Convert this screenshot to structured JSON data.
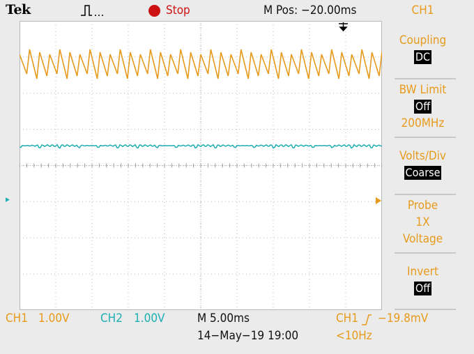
{
  "header": {
    "brand": "Tek",
    "run_state": "Stop",
    "horizontal_position": "M Pos: −20.00ms",
    "menu_title": "CH1"
  },
  "menu": {
    "coupling": {
      "label": "Coupling",
      "value": "DC"
    },
    "bw_limit": {
      "label": "BW Limit",
      "value": "Off",
      "sub": "200MHz"
    },
    "volts_div": {
      "label": "Volts/Div",
      "value": "Coarse"
    },
    "probe": {
      "label": "Probe",
      "value1": "1X",
      "value2": "Voltage"
    },
    "invert": {
      "label": "Invert",
      "value": "Off"
    }
  },
  "footer": {
    "ch1_label": "CH1",
    "ch1_scale": "1.00V",
    "ch2_label": "CH2",
    "ch2_scale": "1.00V",
    "timebase": "M 5.00ms",
    "date_time": "14−May−19 19:00",
    "trigger_source": "CH1",
    "trigger_level": "−19.8mV",
    "frequency": "<10Hz"
  },
  "screen": {
    "ch2_marker": "2",
    "ch1_color": "#e79a1c",
    "ch2_color": "#1eaeb1",
    "trigger_marker_color": "#000000",
    "ch1_waveform": {
      "shape": "sawtooth",
      "cycles": 36
    },
    "ch2_waveform": {
      "shape": "flat-noisy"
    }
  }
}
